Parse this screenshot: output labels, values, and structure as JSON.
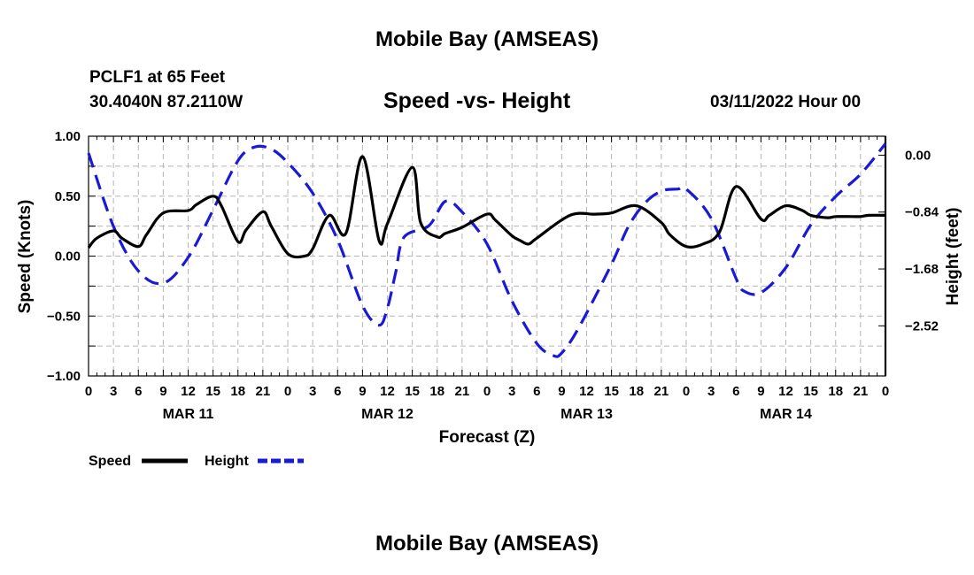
{
  "page": {
    "title_top": "Mobile Bay (AMSEAS)",
    "title_bottom": "Mobile Bay (AMSEAS)",
    "station": "PCLF1 at 65 Feet",
    "coords": "30.4040N  87.2110W",
    "subtitle": "Speed -vs- Height",
    "datetime": "03/11/2022 Hour 00"
  },
  "chart_data": {
    "type": "line",
    "title": "Speed -vs- Height",
    "xlabel": "Forecast (Z)",
    "ylabel": "Speed (Knots)",
    "ylabel_right": "Height (feet)",
    "x_range_hours": [
      0,
      96
    ],
    "ylim": [
      -1.0,
      1.0
    ],
    "ylim_right": [
      -3.26,
      0.28
    ],
    "y_ticks": [
      "1.00",
      "0.50",
      "0.00",
      "−0.50",
      "−1.00"
    ],
    "y_tick_values": [
      1.0,
      0.5,
      0.0,
      -0.5,
      -1.0
    ],
    "y_right_ticks": [
      "0.00",
      "−0.84",
      "−1.68",
      "−2.52"
    ],
    "y_right_tick_values": [
      0.0,
      -0.84,
      -1.68,
      -2.52
    ],
    "x_tick_labels": [
      "0",
      "3",
      "6",
      "9",
      "12",
      "15",
      "18",
      "21",
      "0",
      "3",
      "6",
      "9",
      "12",
      "15",
      "18",
      "21",
      "0",
      "3",
      "6",
      "9",
      "12",
      "15",
      "18",
      "21",
      "0",
      "3",
      "6",
      "9",
      "12",
      "15",
      "18",
      "21",
      "0"
    ],
    "day_labels": [
      "MAR 11",
      "MAR 12",
      "MAR 13",
      "MAR 14"
    ],
    "grid": true,
    "legend": [
      {
        "name": "Speed",
        "color": "#000000",
        "style": "solid"
      },
      {
        "name": "Height",
        "color": "#1a1ad6",
        "style": "dashed"
      }
    ],
    "series": [
      {
        "name": "Speed",
        "axis": "left",
        "color": "#000000",
        "hours": [
          0,
          1,
          3,
          4,
          6,
          7,
          9,
          12,
          13,
          15,
          16,
          18,
          19,
          21,
          22,
          24,
          26,
          27,
          29,
          31,
          33,
          35,
          36,
          39,
          40,
          42,
          43,
          45,
          48,
          49,
          51,
          52,
          53,
          54,
          58,
          61,
          63,
          66,
          69,
          70,
          72,
          74,
          76,
          78,
          81,
          82,
          84,
          86,
          87,
          89,
          90,
          92,
          93,
          94,
          96
        ],
        "values": [
          0.07,
          0.15,
          0.21,
          0.15,
          0.08,
          0.18,
          0.36,
          0.38,
          0.43,
          0.5,
          0.42,
          0.12,
          0.22,
          0.37,
          0.25,
          0.02,
          0.0,
          0.06,
          0.34,
          0.19,
          0.83,
          0.13,
          0.27,
          0.74,
          0.28,
          0.16,
          0.19,
          0.24,
          0.35,
          0.3,
          0.17,
          0.13,
          0.1,
          0.15,
          0.34,
          0.35,
          0.36,
          0.42,
          0.28,
          0.18,
          0.08,
          0.1,
          0.2,
          0.58,
          0.31,
          0.34,
          0.42,
          0.38,
          0.34,
          0.32,
          0.33,
          0.33,
          0.33,
          0.34,
          0.34
        ]
      },
      {
        "name": "Height",
        "axis": "right",
        "color": "#1a1ad6",
        "hours": [
          0,
          3,
          6,
          9,
          12,
          15,
          18,
          20,
          22,
          24,
          27,
          30,
          33,
          35,
          36,
          37,
          38,
          41,
          43,
          45,
          48,
          51,
          54,
          56,
          57,
          59,
          63,
          65,
          67,
          69,
          71,
          72,
          75,
          78,
          79,
          81,
          84,
          87,
          90,
          93,
          96
        ],
        "values": [
          0.03,
          -1.05,
          -1.71,
          -1.89,
          -1.51,
          -0.81,
          -0.08,
          0.12,
          0.09,
          -0.11,
          -0.56,
          -1.25,
          -2.22,
          -2.51,
          -2.26,
          -1.73,
          -1.21,
          -1.04,
          -0.68,
          -0.84,
          -1.31,
          -2.15,
          -2.78,
          -2.96,
          -2.92,
          -2.56,
          -1.61,
          -1.06,
          -0.71,
          -0.53,
          -0.5,
          -0.5,
          -0.93,
          -1.82,
          -2.01,
          -2.03,
          -1.66,
          -1.03,
          -0.61,
          -0.28,
          0.17
        ]
      }
    ]
  }
}
